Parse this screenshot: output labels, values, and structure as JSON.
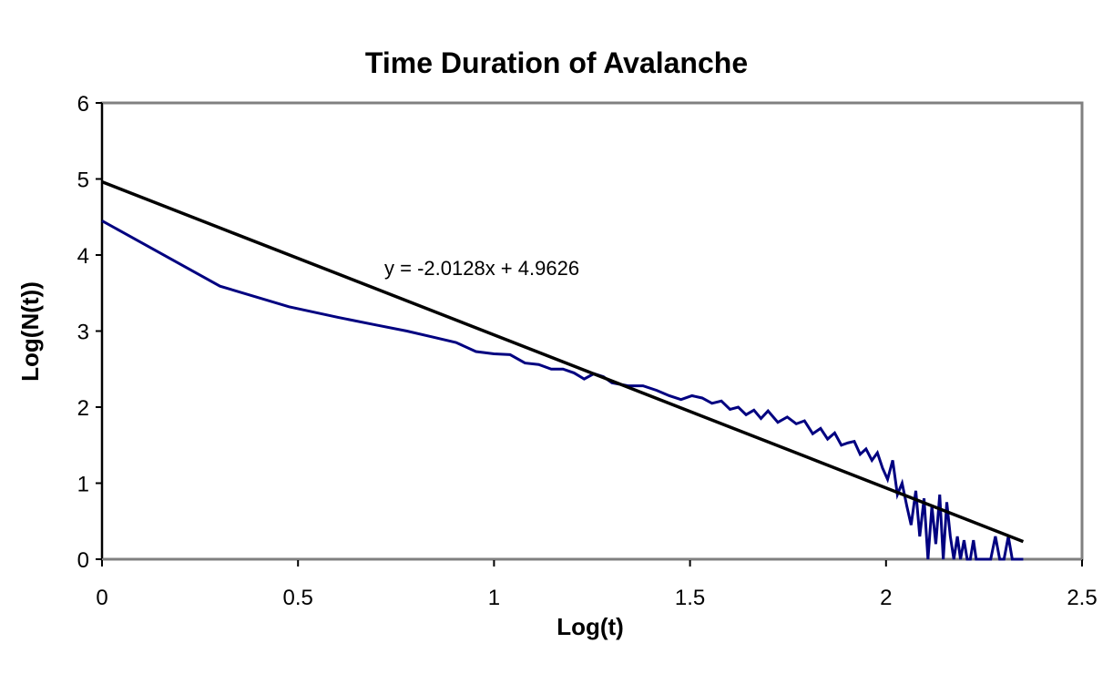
{
  "chart_data": {
    "type": "line",
    "title": "Time Duration of Avalanche",
    "xlabel": "Log(t)",
    "ylabel": "Log(N(t))",
    "xlim": [
      0,
      2.5
    ],
    "ylim": [
      0,
      6
    ],
    "xticks": [
      "0",
      "0.5",
      "1",
      "1.5",
      "2",
      "2.5"
    ],
    "yticks": [
      "0",
      "1",
      "2",
      "3",
      "4",
      "5",
      "6"
    ],
    "grid": false,
    "series": [
      {
        "name": "Log(N(t))",
        "color": "#000080",
        "x": [
          0,
          0.301,
          0.477,
          0.602,
          0.699,
          0.778,
          0.845,
          0.903,
          0.954,
          1.0,
          1.041,
          1.079,
          1.114,
          1.146,
          1.176,
          1.204,
          1.23,
          1.255,
          1.279,
          1.301,
          1.342,
          1.38,
          1.415,
          1.447,
          1.477,
          1.505,
          1.531,
          1.556,
          1.58,
          1.602,
          1.623,
          1.643,
          1.663,
          1.681,
          1.699,
          1.724,
          1.748,
          1.771,
          1.792,
          1.813,
          1.833,
          1.851,
          1.869,
          1.886,
          1.903,
          1.919,
          1.934,
          1.949,
          1.964,
          1.978,
          1.991,
          2.004,
          2.017,
          2.029,
          2.041,
          2.053,
          2.064,
          2.076,
          2.086,
          2.097,
          2.107,
          2.117,
          2.127,
          2.137,
          2.146,
          2.155,
          2.164,
          2.173,
          2.182,
          2.19,
          2.199,
          2.207,
          2.215,
          2.223,
          2.23,
          2.243,
          2.255,
          2.267,
          2.279,
          2.29,
          2.301,
          2.312,
          2.322,
          2.332,
          2.342,
          2.35
        ],
        "y": [
          4.45,
          3.59,
          3.32,
          3.18,
          3.08,
          3.0,
          2.92,
          2.85,
          2.73,
          2.7,
          2.69,
          2.58,
          2.56,
          2.5,
          2.5,
          2.45,
          2.37,
          2.44,
          2.4,
          2.32,
          2.28,
          2.28,
          2.22,
          2.15,
          2.1,
          2.15,
          2.12,
          2.05,
          2.08,
          1.97,
          2.0,
          1.9,
          1.96,
          1.85,
          1.95,
          1.8,
          1.87,
          1.78,
          1.82,
          1.65,
          1.72,
          1.58,
          1.66,
          1.5,
          1.53,
          1.55,
          1.38,
          1.45,
          1.3,
          1.4,
          1.2,
          1.05,
          1.3,
          0.85,
          1.0,
          0.7,
          0.45,
          0.9,
          0.3,
          0.8,
          0,
          0.7,
          0.2,
          0.85,
          0,
          0.75,
          0.3,
          0,
          0.3,
          0,
          0.25,
          0,
          0,
          0.25,
          0,
          0,
          0,
          0,
          0.3,
          0,
          0,
          0.3,
          0,
          0,
          0,
          0
        ]
      }
    ],
    "trendline": {
      "equation": "y = -2.0128x + 4.9626",
      "slope": -2.0128,
      "intercept": 4.9626,
      "x_range": [
        0,
        2.35
      ],
      "color": "#000000"
    }
  }
}
